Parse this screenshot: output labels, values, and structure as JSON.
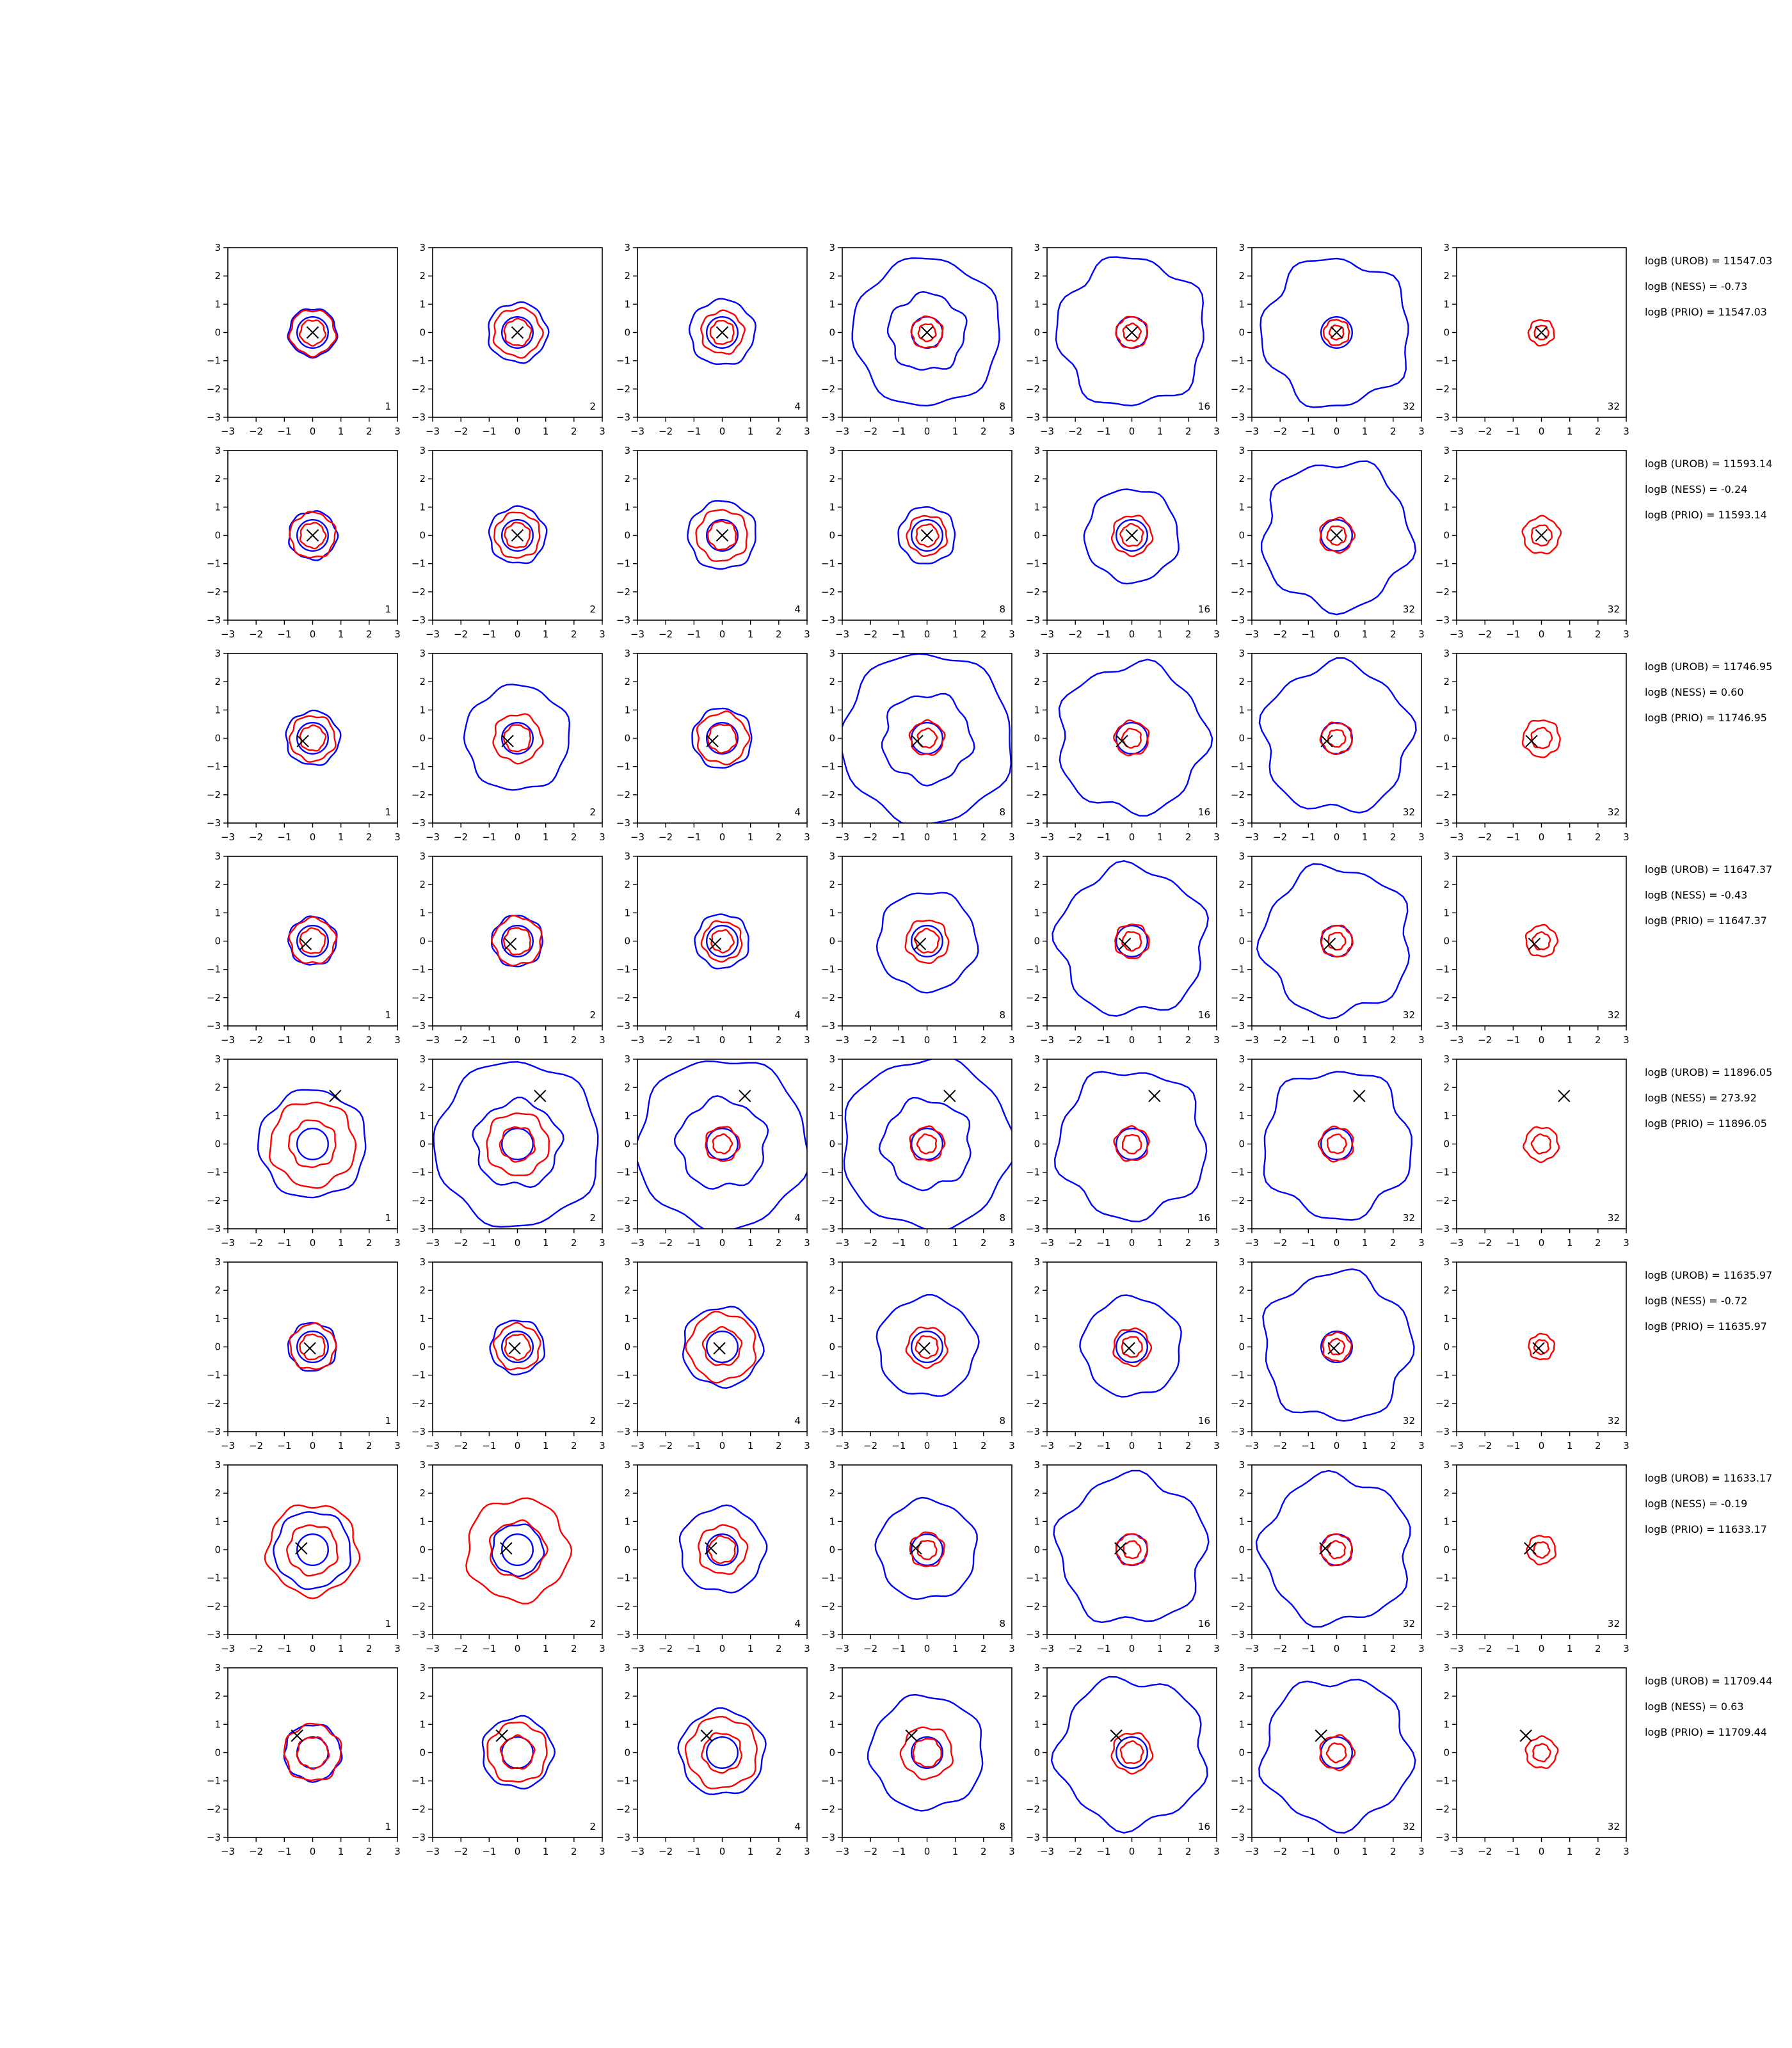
{
  "chart_data": {
    "type": "contour",
    "grid": {
      "rows": 8,
      "cols": 7
    },
    "axes": {
      "xlim": [
        -3,
        3
      ],
      "ylim": [
        -3,
        3
      ],
      "xticks": [
        "−3",
        "−2",
        "−1",
        "0",
        "1",
        "2",
        "3"
      ],
      "yticks": [
        "3",
        "2",
        "1",
        "0",
        "−1",
        "−2",
        "−3"
      ]
    },
    "colors": {
      "series_a": "#0000ff",
      "series_b": "#ff0000",
      "marker": "#000000"
    },
    "panel_labels": [
      "1",
      "2",
      "4",
      "8",
      "16",
      "32",
      "32"
    ],
    "panel_series": [
      [
        "blue",
        "red"
      ],
      [
        "blue",
        "red"
      ],
      [
        "blue",
        "red"
      ],
      [
        "blue",
        "red"
      ],
      [
        "blue",
        "red"
      ],
      [
        "blue",
        "red"
      ],
      [
        "red"
      ]
    ],
    "rows": [
      {
        "marker": [
          0.0,
          0.0
        ],
        "annotations": [
          "logB (UROB) = 11547.03",
          "logB (NESS) = -0.73",
          "logB (PRIO) = 11547.03"
        ],
        "blue_radii": [
          0.85,
          1.05,
          1.15,
          2.6,
          5,
          5,
          0
        ],
        "red_radii": [
          0.8,
          0.85,
          0.75,
          0.55,
          0.55,
          0.45,
          0.45
        ]
      },
      {
        "marker": [
          0.0,
          0.0
        ],
        "annotations": [
          "logB (UROB) = 11593.14",
          "logB (NESS) = -0.24",
          "logB (PRIO) = 11593.14"
        ],
        "blue_radii": [
          0.85,
          1.0,
          1.2,
          1.0,
          1.65,
          5,
          0
        ],
        "red_radii": [
          0.8,
          0.8,
          0.9,
          0.7,
          0.7,
          0.6,
          0.65
        ]
      },
      {
        "marker": [
          -0.35,
          -0.1
        ],
        "annotations": [
          "logB (UROB) = 11746.95",
          "logB (NESS) = 0.60",
          "logB (PRIO) = 11746.95"
        ],
        "blue_radii": [
          0.95,
          1.85,
          1.05,
          3.0,
          5,
          5,
          0
        ],
        "red_radii": [
          0.8,
          0.85,
          0.9,
          0.6,
          0.6,
          0.55,
          0.65
        ]
      },
      {
        "marker": [
          -0.25,
          -0.1
        ],
        "annotations": [
          "logB (UROB) = 11647.37",
          "logB (NESS) = -0.43",
          "logB (PRIO) = 11647.37"
        ],
        "blue_radii": [
          0.85,
          0.9,
          0.95,
          1.75,
          5,
          5,
          0
        ],
        "red_radii": [
          0.8,
          0.85,
          0.7,
          0.75,
          0.6,
          0.55,
          0.55
        ]
      },
      {
        "marker": [
          0.8,
          1.7
        ],
        "annotations": [
          "logB (UROB) = 11896.05",
          "logB (NESS) = 273.92",
          "logB (PRIO) = 11896.05"
        ],
        "blue_radii": [
          1.9,
          2.9,
          3.0,
          3.0,
          5,
          5,
          0
        ],
        "red_radii": [
          1.5,
          1.1,
          0.6,
          0.6,
          0.6,
          0.6,
          0.6
        ]
      },
      {
        "marker": [
          -0.1,
          -0.05
        ],
        "annotations": [
          "logB (UROB) = 11635.97",
          "logB (NESS) = -0.72",
          "logB (PRIO) = 11635.97"
        ],
        "blue_radii": [
          0.85,
          0.95,
          1.4,
          1.75,
          1.75,
          5,
          0
        ],
        "red_radii": [
          0.8,
          0.8,
          1.2,
          0.7,
          0.65,
          0.5,
          0.45
        ]
      },
      {
        "marker": [
          -0.4,
          0.05
        ],
        "annotations": [
          "logB (UROB) = 11633.17",
          "logB (NESS) = -0.19",
          "logB (PRIO) = 11633.17"
        ],
        "blue_radii": [
          1.35,
          0.9,
          1.5,
          1.75,
          5,
          5,
          0
        ],
        "red_radii": [
          1.6,
          1.8,
          0.85,
          0.6,
          0.55,
          0.55,
          0.5
        ]
      },
      {
        "marker": [
          -0.55,
          0.6
        ],
        "annotations": [
          "logB (UROB) = 11709.44",
          "logB (NESS) = 0.63",
          "logB (PRIO) = 11709.44"
        ],
        "blue_radii": [
          1.0,
          1.25,
          1.5,
          2.0,
          5,
          5,
          0
        ],
        "red_radii": [
          1.0,
          1.05,
          1.25,
          0.9,
          0.7,
          0.6,
          0.55
        ]
      }
    ]
  }
}
